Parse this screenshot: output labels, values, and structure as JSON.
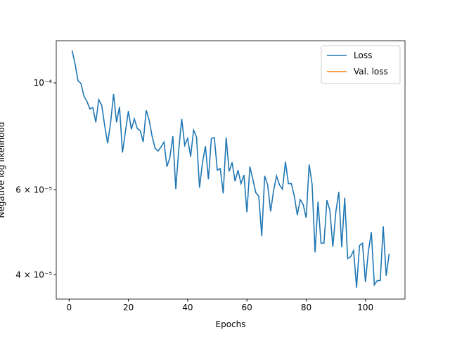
{
  "chart_data": {
    "type": "line",
    "xlabel": "Epochs",
    "ylabel": "Negative log likelihood",
    "log_y": true,
    "legend": "upper right",
    "xlim": [
      -4.35,
      113.35
    ],
    "xticks": [
      0,
      20,
      40,
      60,
      80,
      100
    ],
    "ylim": [
      3.56e-05,
      0.0001223
    ],
    "yticks": [
      {
        "value": 0.0001,
        "label": "10⁻⁴"
      },
      {
        "value": 6e-05,
        "label": "6 × 10⁻⁵"
      },
      {
        "value": 4e-05,
        "label": "4 × 10⁻⁵"
      }
    ],
    "x": [
      1,
      2,
      3,
      4,
      5,
      6,
      7,
      8,
      9,
      10,
      11,
      12,
      13,
      14,
      15,
      16,
      17,
      18,
      19,
      20,
      21,
      22,
      23,
      24,
      25,
      26,
      27,
      28,
      29,
      30,
      31,
      32,
      33,
      34,
      35,
      36,
      37,
      38,
      39,
      40,
      41,
      42,
      43,
      44,
      45,
      46,
      47,
      48,
      49,
      50,
      51,
      52,
      53,
      54,
      55,
      56,
      57,
      58,
      59,
      60,
      61,
      62,
      63,
      64,
      65,
      66,
      67,
      68,
      69,
      70,
      71,
      72,
      73,
      74,
      75,
      76,
      77,
      78,
      79,
      80,
      81,
      82,
      83,
      84,
      85,
      86,
      87,
      88,
      89,
      90,
      91,
      92,
      93,
      94,
      95,
      96,
      97,
      98,
      99,
      100,
      101,
      102,
      103,
      104,
      105,
      106,
      107,
      108
    ],
    "series": [
      {
        "name": "Loss",
        "color": "#1f77b4",
        "values": [
          0.0001167,
          0.0001095,
          0.000101,
          9.97e-05,
          9.38e-05,
          9.16e-05,
          8.83e-05,
          8.89e-05,
          8.28e-05,
          9.23e-05,
          8.98e-05,
          8.15e-05,
          7.49e-05,
          8.28e-05,
          9.48e-05,
          8.28e-05,
          8.92e-05,
          7.17e-05,
          7.93e-05,
          8.74e-05,
          8.01e-05,
          8.42e-05,
          8.04e-05,
          7.96e-05,
          7.54e-05,
          8.77e-05,
          8.37e-05,
          7.75e-05,
          7.32e-05,
          7.22e-05,
          7.36e-05,
          7.54e-05,
          6.7e-05,
          7e-05,
          7.75e-05,
          6.02e-05,
          7.29e-05,
          8.42e-05,
          7.42e-05,
          7.67e-05,
          7.03e-05,
          7.98e-05,
          7.72e-05,
          6.06e-05,
          6.84e-05,
          7.39e-05,
          6.31e-05,
          7.67e-05,
          7.7e-05,
          6.59e-05,
          6.64e-05,
          5.9e-05,
          7.7e-05,
          6.55e-05,
          6.84e-05,
          6.25e-05,
          6.59e-05,
          6.18e-05,
          6.44e-05,
          5.39e-05,
          6.7e-05,
          6.31e-05,
          5.92e-05,
          5.82e-05,
          4.81e-05,
          6.41e-05,
          6.14e-05,
          5.41e-05,
          5.98e-05,
          6.41e-05,
          6.14e-05,
          6.02e-05,
          6.86e-05,
          6.18e-05,
          6.18e-05,
          5.82e-05,
          5.32e-05,
          5.72e-05,
          5.59e-05,
          5.25e-05,
          6.77e-05,
          6.16e-05,
          4.45e-05,
          5.67e-05,
          4.65e-05,
          4.65e-05,
          5.71e-05,
          5.44e-05,
          4.57e-05,
          5.39e-05,
          5.94e-05,
          4.56e-05,
          5.78e-05,
          4.32e-05,
          4.36e-05,
          4.49e-05,
          3.76e-05,
          4.6e-05,
          4.65e-05,
          3.86e-05,
          4.48e-05,
          4.9e-05,
          3.81e-05,
          3.89e-05,
          3.89e-05,
          5.04e-05,
          3.98e-05,
          4.42e-05
        ]
      },
      {
        "name": "Val. loss",
        "color": "#ff7f0e",
        "values": [
          null,
          null,
          null,
          null,
          null,
          null,
          null,
          null,
          null,
          null,
          null,
          null,
          null,
          null,
          null,
          null,
          null,
          null,
          null,
          null,
          null,
          null,
          null,
          null,
          null,
          null,
          null,
          null,
          null,
          null,
          null,
          null,
          null,
          null,
          null,
          null,
          null,
          null,
          null,
          null,
          null,
          null,
          null,
          null,
          null,
          null,
          null,
          null,
          null,
          null,
          null,
          null,
          null,
          null,
          null,
          null,
          null,
          null,
          null,
          null,
          null,
          null,
          null,
          null,
          null,
          null,
          null,
          null,
          null,
          null,
          null,
          null,
          null,
          null,
          null,
          null,
          null,
          null,
          null,
          null,
          null,
          null,
          null,
          null,
          null,
          null,
          null,
          null,
          null,
          null,
          null,
          null,
          null,
          null,
          null,
          null,
          null,
          null,
          null,
          null,
          null,
          null,
          null,
          null,
          null,
          null,
          null,
          null
        ]
      }
    ]
  }
}
